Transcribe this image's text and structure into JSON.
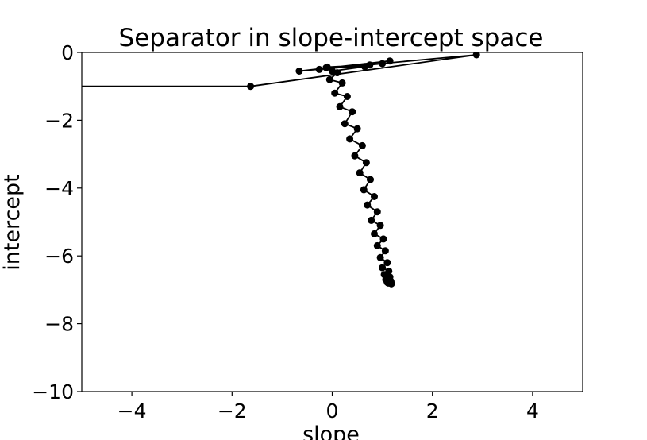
{
  "chart_data": {
    "type": "line",
    "title": "Separator in slope-intercept space",
    "xlabel": "slope",
    "ylabel": "intercept",
    "xlim": [
      -5,
      5
    ],
    "ylim": [
      -10,
      0
    ],
    "xticks": [
      -4,
      -2,
      0,
      2,
      4
    ],
    "yticks": [
      0,
      -2,
      -4,
      -6,
      -8,
      -10
    ],
    "xtick_labels": [
      "−4",
      "−2",
      "0",
      "2",
      "4"
    ],
    "ytick_labels": [
      "0",
      "−2",
      "−4",
      "−6",
      "−8",
      "−10"
    ],
    "grid": false,
    "legend": "none",
    "color": "#000000",
    "marker": "circle",
    "series": [
      {
        "x": [
          -5.5,
          -1.63,
          2.88,
          -0.66,
          1.15,
          -0.26,
          1.0,
          -0.12,
          0.75,
          -0.1,
          0.65,
          0.0,
          0.1,
          -0.05,
          0.2,
          0.05,
          0.3,
          0.15,
          0.4,
          0.25,
          0.5,
          0.35,
          0.6,
          0.45,
          0.68,
          0.55,
          0.76,
          0.63,
          0.84,
          0.7,
          0.9,
          0.78,
          0.96,
          0.84,
          1.02,
          0.9,
          1.06,
          0.96,
          1.1,
          1.0,
          1.13,
          1.04,
          1.15,
          1.07,
          1.17,
          1.1,
          1.18,
          1.12,
          1.18,
          1.14,
          1.17
        ],
        "y": [
          -1.0,
          -1.0,
          -0.07,
          -0.55,
          -0.25,
          -0.5,
          -0.33,
          -0.45,
          -0.37,
          -0.43,
          -0.42,
          -0.55,
          -0.6,
          -0.8,
          -0.9,
          -1.2,
          -1.3,
          -1.6,
          -1.75,
          -2.1,
          -2.25,
          -2.55,
          -2.75,
          -3.05,
          -3.25,
          -3.55,
          -3.75,
          -4.05,
          -4.25,
          -4.5,
          -4.7,
          -4.95,
          -5.1,
          -5.35,
          -5.5,
          -5.7,
          -5.85,
          -6.05,
          -6.2,
          -6.35,
          -6.45,
          -6.55,
          -6.62,
          -6.7,
          -6.75,
          -6.78,
          -6.82,
          -6.8,
          -6.82,
          -6.78,
          -6.75
        ]
      }
    ]
  }
}
